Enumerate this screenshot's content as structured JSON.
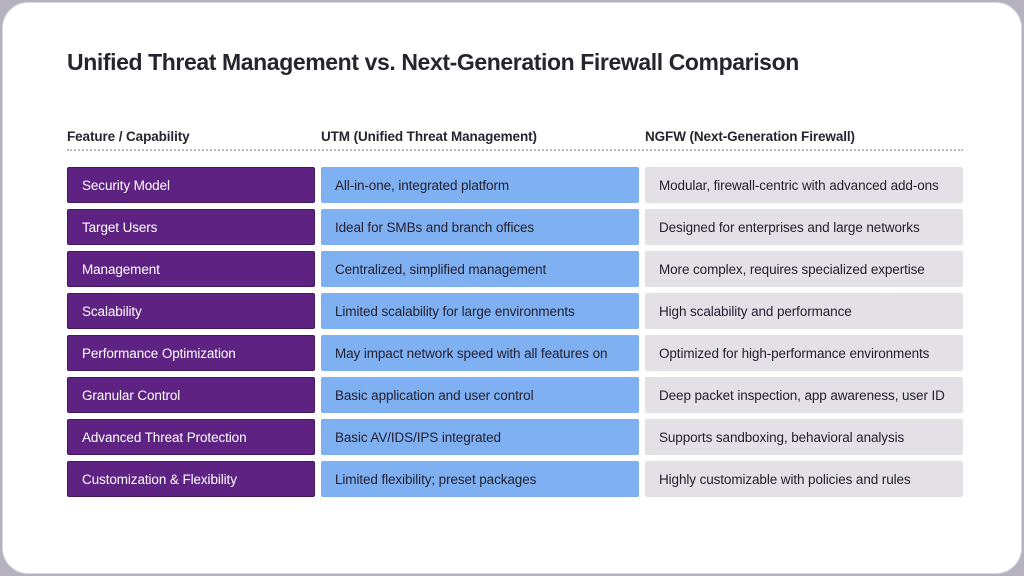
{
  "page": {
    "title": "Unified Threat Management vs. Next-Generation Firewall Comparison"
  },
  "table": {
    "headers": [
      "Feature / Capability",
      "UTM (Unified Threat Management)",
      "NGFW (Next-Generation Firewall)"
    ],
    "rows": [
      {
        "feature": "Security Model",
        "utm": "All-in-one, integrated platform",
        "ngfw": "Modular, firewall-centric with advanced add-ons"
      },
      {
        "feature": "Target Users",
        "utm": "Ideal for SMBs and branch offices",
        "ngfw": "Designed for enterprises and large networks"
      },
      {
        "feature": "Management",
        "utm": "Centralized, simplified management",
        "ngfw": "More complex, requires specialized expertise"
      },
      {
        "feature": "Scalability",
        "utm": "Limited scalability for large environments",
        "ngfw": "High scalability and performance"
      },
      {
        "feature": "Performance Optimization",
        "utm": "May impact network speed with all features on",
        "ngfw": "Optimized for high-performance environments"
      },
      {
        "feature": "Granular Control",
        "utm": "Basic application and user control",
        "ngfw": "Deep packet inspection, app awareness, user ID"
      },
      {
        "feature": "Advanced Threat Protection",
        "utm": "Basic AV/IDS/IPS integrated",
        "ngfw": "Supports sandboxing, behavioral analysis"
      },
      {
        "feature": "Customization & Flexibility",
        "utm": "Limited flexibility; preset packages",
        "ngfw": "Highly customizable with policies and rules"
      }
    ]
  },
  "colors": {
    "feature_purple": "#5d2282",
    "feature_purple_border": "#44175f",
    "utm_blue": "#7fb0f2",
    "ngfw_gray": "#e3e1e6"
  }
}
